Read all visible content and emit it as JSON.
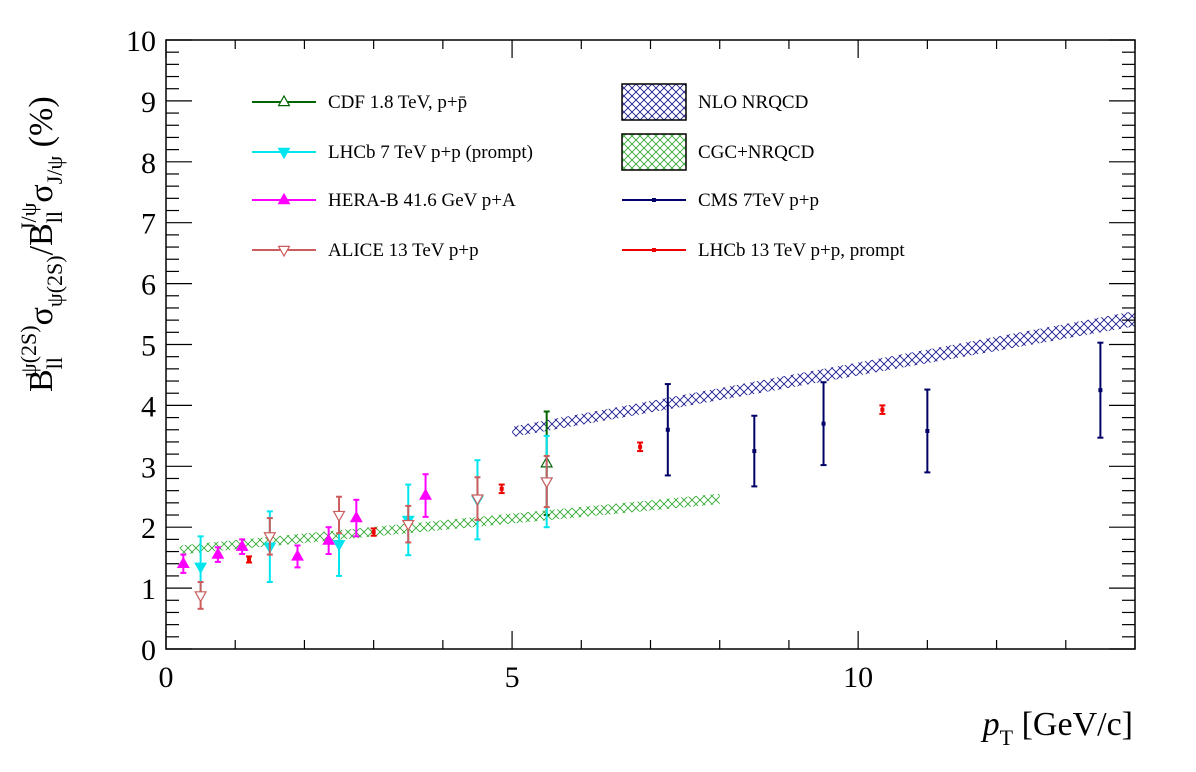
{
  "chart_data": {
    "type": "scatter",
    "xlabel": "p_T [GeV/c]",
    "ylabel": "B_ll^ψ(2S) σ_ψ(2S) / B_ll^J/ψ σ_J/ψ (%)",
    "xlim": [
      0,
      14
    ],
    "ylim": [
      0,
      10
    ],
    "x_ticks": [
      0,
      5,
      10
    ],
    "y_ticks": [
      0,
      1,
      2,
      3,
      4,
      5,
      6,
      7,
      8,
      9,
      10
    ],
    "grid": false,
    "legend_position": "top",
    "series": [
      {
        "name": "CDF 1.8 TeV, p+p̄",
        "color": "#006400",
        "marker": "open-triangle-up",
        "points": [
          {
            "x": 5.5,
            "y": 3.05,
            "err": 0.85
          }
        ]
      },
      {
        "name": "LHCb 7 TeV p+p (prompt)",
        "color": "#00e5ee",
        "marker": "filled-triangle-down",
        "points": [
          {
            "x": 0.5,
            "y": 1.35,
            "err": 0.5
          },
          {
            "x": 1.5,
            "y": 1.68,
            "err": 0.58
          },
          {
            "x": 2.5,
            "y": 1.72,
            "err": 0.52
          },
          {
            "x": 3.5,
            "y": 2.12,
            "err": 0.58
          },
          {
            "x": 4.5,
            "y": 2.45,
            "err": 0.65
          },
          {
            "x": 5.5,
            "y": 2.75,
            "err": 0.75
          }
        ]
      },
      {
        "name": "HERA-B 41.6 GeV p+A",
        "color": "#ff00ff",
        "marker": "filled-triangle-up",
        "points": [
          {
            "x": 0.25,
            "y": 1.4,
            "err": 0.15
          },
          {
            "x": 0.75,
            "y": 1.55,
            "err": 0.12
          },
          {
            "x": 1.1,
            "y": 1.68,
            "err": 0.12
          },
          {
            "x": 1.9,
            "y": 1.52,
            "err": 0.18
          },
          {
            "x": 2.35,
            "y": 1.78,
            "err": 0.22
          },
          {
            "x": 2.75,
            "y": 2.15,
            "err": 0.3
          },
          {
            "x": 3.75,
            "y": 2.52,
            "err": 0.35
          }
        ]
      },
      {
        "name": "ALICE 13 TeV p+p",
        "color": "#cd5c5c",
        "marker": "open-triangle-down",
        "points": [
          {
            "x": 0.5,
            "y": 0.88,
            "err": 0.22
          },
          {
            "x": 1.5,
            "y": 1.85,
            "err": 0.3
          },
          {
            "x": 2.5,
            "y": 2.2,
            "err": 0.3
          },
          {
            "x": 3.5,
            "y": 2.05,
            "err": 0.3
          },
          {
            "x": 4.5,
            "y": 2.47,
            "err": 0.35
          },
          {
            "x": 5.5,
            "y": 2.75,
            "err": 0.42
          }
        ]
      },
      {
        "name": "CMS 7TeV p+p",
        "color": "#000066",
        "marker": "dot",
        "points": [
          {
            "x": 7.25,
            "y": 3.6,
            "err": 0.75
          },
          {
            "x": 8.5,
            "y": 3.25,
            "err": 0.58
          },
          {
            "x": 9.5,
            "y": 3.7,
            "err": 0.68
          },
          {
            "x": 11.0,
            "y": 3.58,
            "err": 0.68
          },
          {
            "x": 13.5,
            "y": 4.25,
            "err": 0.78
          }
        ]
      },
      {
        "name": "LHCb 13 TeV p+p, prompt",
        "color": "#ee0000",
        "marker": "dot",
        "points": [
          {
            "x": 1.2,
            "y": 1.47,
            "err": 0.05
          },
          {
            "x": 3.0,
            "y": 1.92,
            "err": 0.06
          },
          {
            "x": 4.85,
            "y": 2.63,
            "err": 0.07
          },
          {
            "x": 6.85,
            "y": 3.32,
            "err": 0.07
          },
          {
            "x": 10.35,
            "y": 3.93,
            "err": 0.07
          }
        ]
      }
    ],
    "bands": [
      {
        "name": "NLO NRQCD",
        "color": "#1a1a8c",
        "x": [
          5.0,
          14.0
        ],
        "low": [
          3.48,
          5.3
        ],
        "high": [
          3.65,
          5.55
        ]
      },
      {
        "name": "CGC+NRQCD",
        "color": "#33aa33",
        "x": [
          0.2,
          8.0
        ],
        "low": [
          1.55,
          2.38
        ],
        "high": [
          1.7,
          2.55
        ]
      }
    ]
  }
}
